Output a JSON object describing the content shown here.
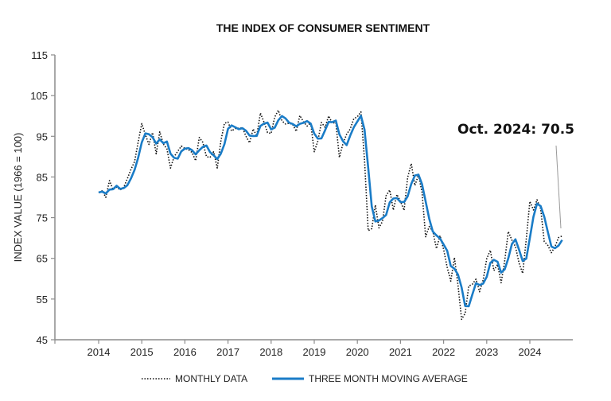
{
  "chart_data": {
    "type": "line",
    "title": "THE INDEX OF CONSUMER SENTIMENT",
    "xlabel": "",
    "ylabel": "INDEX VALUE (1966 = 100)",
    "ylim": [
      45,
      115
    ],
    "yticks": [
      45,
      55,
      65,
      75,
      85,
      95,
      105,
      115
    ],
    "xticks": [
      "2014",
      "2015",
      "2016",
      "2017",
      "2018",
      "2019",
      "2020",
      "2021",
      "2022",
      "2023",
      "2024"
    ],
    "start": "2014-01",
    "grid": false,
    "legend_position": "bottom",
    "annotation": "Oct. 2024: 70.5",
    "colors": {
      "monthly": "#111111",
      "moving_average": "#1a7cc7",
      "axis": "#8c8c8c"
    },
    "series": [
      {
        "name": "MONTHLY DATA",
        "style": "dotted",
        "values": [
          81.2,
          81.6,
          80.0,
          84.1,
          81.9,
          82.5,
          81.8,
          82.5,
          84.6,
          86.9,
          88.8,
          93.6,
          98.1,
          95.4,
          93.0,
          95.9,
          90.7,
          96.1,
          93.1,
          91.9,
          87.2,
          90.0,
          91.3,
          92.6,
          92.0,
          91.7,
          91.0,
          89.0,
          94.7,
          93.5,
          90.0,
          89.8,
          91.2,
          87.2,
          93.8,
          98.2,
          98.5,
          96.3,
          96.9,
          97.0,
          97.1,
          95.0,
          93.4,
          96.8,
          95.1,
          100.7,
          98.5,
          95.9,
          95.7,
          99.7,
          101.4,
          98.8,
          98.0,
          98.2,
          97.9,
          96.2,
          100.1,
          98.6,
          97.5,
          98.3,
          91.2,
          93.8,
          98.4,
          97.2,
          100.0,
          98.2,
          98.4,
          89.8,
          93.2,
          95.5,
          96.8,
          99.3,
          99.8,
          101.0,
          89.1,
          71.8,
          72.3,
          78.1,
          72.5,
          74.1,
          80.4,
          81.8,
          76.9,
          80.7,
          79.0,
          76.8,
          84.9,
          88.3,
          82.9,
          85.5,
          81.2,
          70.3,
          72.8,
          71.7,
          67.4,
          70.6,
          67.2,
          62.8,
          59.4,
          65.2,
          58.4,
          50.0,
          51.5,
          58.2,
          58.6,
          59.9,
          56.8,
          59.7,
          64.9,
          67.0,
          62.0,
          63.5,
          59.0,
          64.4,
          71.6,
          69.5,
          67.9,
          63.8,
          61.3,
          69.7,
          79.0,
          76.9,
          79.4,
          77.2,
          69.1,
          68.2,
          66.4,
          67.9,
          70.1,
          70.5
        ]
      },
      {
        "name": "THREE MONTH MOVING AVERAGE",
        "style": "solid",
        "window": 3
      }
    ]
  }
}
